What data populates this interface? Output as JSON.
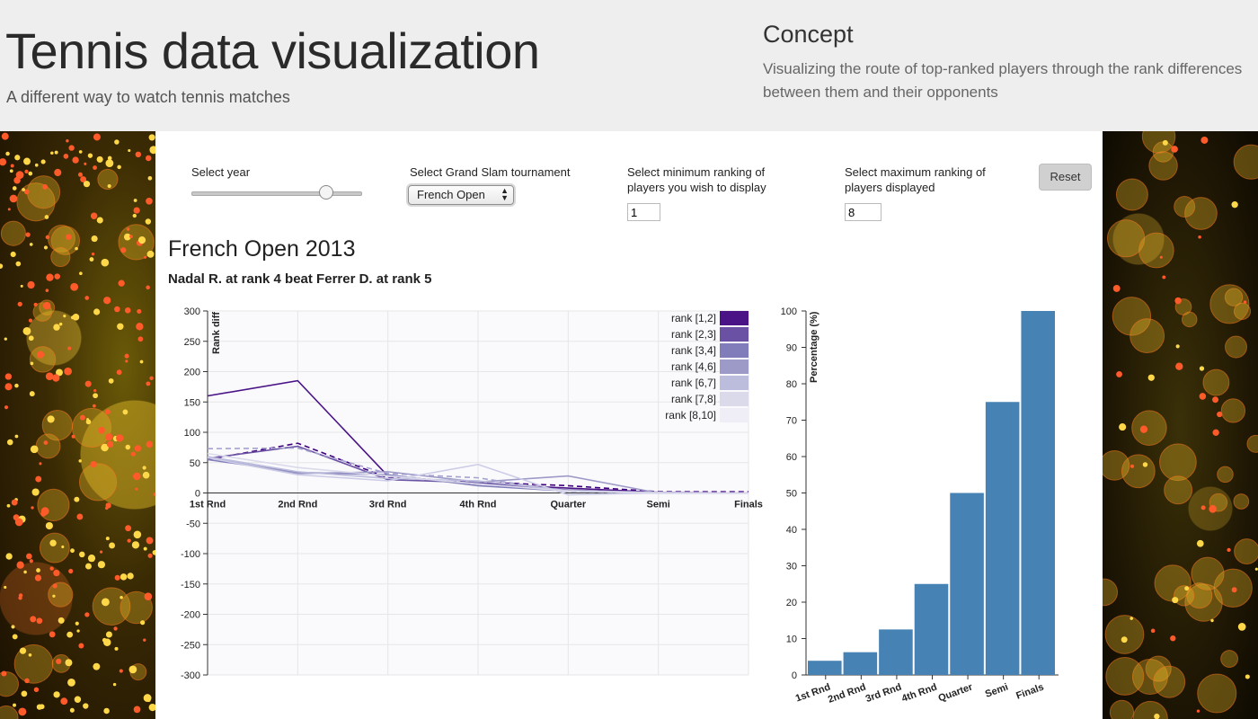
{
  "header": {
    "title": "Tennis data visualization",
    "subtitle": "A different way to watch tennis matches",
    "concept_title": "Concept",
    "concept_text": "Visualizing the route of top-ranked players through the rank differences between them and their opponents"
  },
  "controls": {
    "year_label": "Select year",
    "year_value_fraction": 0.79,
    "tournament_label": "Select Grand Slam tournament",
    "tournament_selected": "French Open",
    "min_rank_label": "Select minimum ranking of players you wish to display",
    "min_rank_value": "1",
    "max_rank_label": "Select maximum ranking of players displayed",
    "max_rank_value": "8",
    "reset_label": "Reset"
  },
  "chart_heading": "French Open 2013",
  "match_result": "Nadal R. at rank 4 beat Ferrer D. at rank 5",
  "chart_data": [
    {
      "type": "line",
      "ylabel": "Rank diff",
      "ylim": [
        -300,
        300
      ],
      "yticks": [
        300,
        250,
        200,
        150,
        100,
        50,
        0,
        -50,
        -100,
        -150,
        -200,
        -250,
        -300
      ],
      "categories": [
        "1st Rnd",
        "2nd Rnd",
        "3rd Rnd",
        "4th Rnd",
        "Quarter",
        "Semi",
        "Finals"
      ],
      "legend_position": "top-right",
      "legend": [
        {
          "label": "rank [1,2]",
          "color": "#4a1486"
        },
        {
          "label": "rank [2,3]",
          "color": "#6a51a3"
        },
        {
          "label": "rank [3,4]",
          "color": "#807dba"
        },
        {
          "label": "rank [4,6]",
          "color": "#9e9ac8"
        },
        {
          "label": "rank [6,7]",
          "color": "#bcbddc"
        },
        {
          "label": "rank [7,8]",
          "color": "#dadaeb"
        },
        {
          "label": "rank [8,10]",
          "color": "#efedf5"
        }
      ],
      "series": [
        {
          "color": "#4a1486",
          "values": [
            160,
            185,
            28,
            15,
            8,
            1,
            0
          ]
        },
        {
          "color": "#3f007d",
          "values": [
            55,
            82,
            25,
            18,
            12,
            2,
            2
          ],
          "dashed": true
        },
        {
          "color": "#6a51a3",
          "values": [
            57,
            77,
            22,
            17,
            5,
            0,
            0
          ]
        },
        {
          "color": "#807dba",
          "values": [
            55,
            34,
            30,
            12,
            3,
            0,
            0
          ]
        },
        {
          "color": "#9e9ac8",
          "values": [
            58,
            32,
            35,
            18,
            28,
            0,
            0
          ]
        },
        {
          "color": "#a4a2cf",
          "values": [
            73,
            74,
            32,
            25,
            2,
            0,
            0
          ],
          "dashed": true
        },
        {
          "color": "#bcbddc",
          "values": [
            60,
            35,
            24,
            20,
            4,
            1,
            0
          ]
        },
        {
          "color": "#cccce6",
          "values": [
            58,
            30,
            20,
            47,
            -3,
            0,
            0
          ]
        },
        {
          "color": "#dadaeb",
          "values": [
            65,
            42,
            28,
            15,
            3,
            0,
            0
          ]
        }
      ]
    },
    {
      "type": "bar",
      "ylabel": "Percentage (%)",
      "ylim": [
        0,
        100
      ],
      "yticks": [
        0,
        10,
        20,
        30,
        40,
        50,
        60,
        70,
        80,
        90,
        100
      ],
      "categories": [
        "1st Rnd",
        "2nd Rnd",
        "3rd Rnd",
        "4th Rnd",
        "Quarter",
        "Semi",
        "Finals"
      ],
      "values": [
        3.9,
        6.25,
        12.5,
        25,
        50,
        75,
        100
      ],
      "color": "#4682b4"
    }
  ]
}
